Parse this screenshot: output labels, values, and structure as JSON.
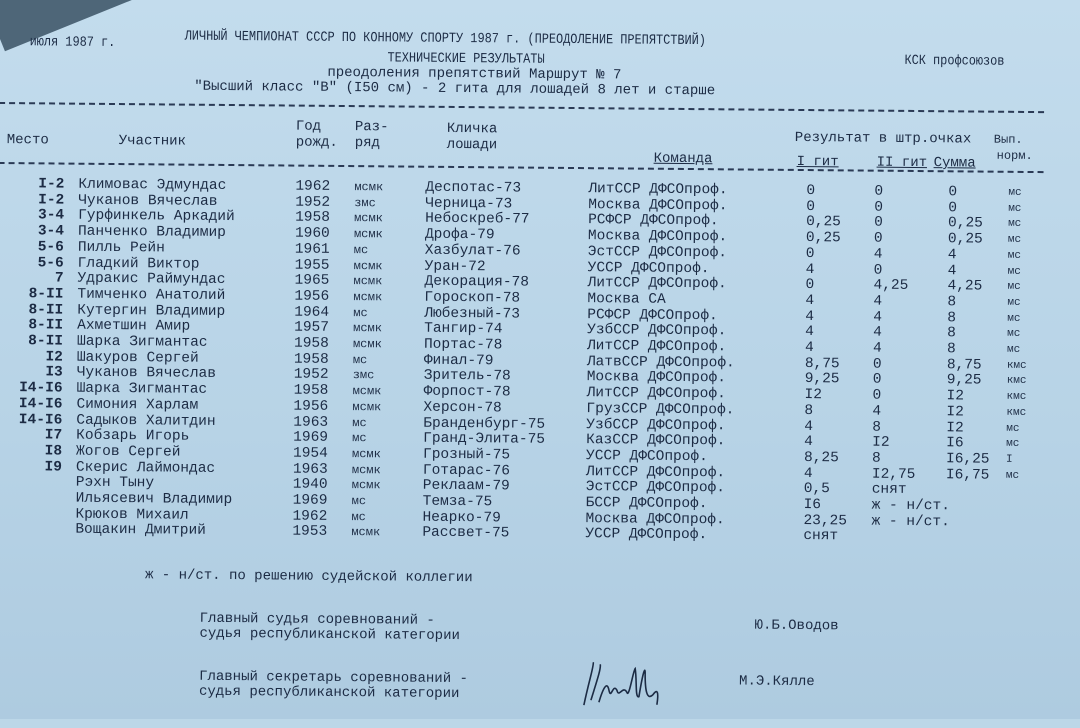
{
  "header": {
    "date": "июля 1987 г.",
    "championship": "ЛИЧНЫЙ ЧЕМПИОНАТ СССР ПО КОННОМУ СПОРТУ 1987 г. (ПРЕОДОЛЕНИЕ ПРЕПЯТСТВИЙ)",
    "venue": "КСК профсоюзов",
    "title": "ТЕХНИЧЕСКИЕ РЕЗУЛЬТАТЫ",
    "subtitle": "преодоления препятствий Маршрут № 7",
    "class": "\"Высший класс \"В\" (I50 см) - 2 гита для лошадей 8 лет и старше"
  },
  "columns": {
    "place": "Место",
    "participant": "Участник",
    "year_1": "Год",
    "year_2": "рожд.",
    "rank_1": "Раз-",
    "rank_2": "ряд",
    "horse_1": "Кличка",
    "horse_2": "лошади",
    "team": "Команда",
    "result": "Результат в штр.очках",
    "round1": "I гит",
    "round2": "II гит",
    "sum": "Сумма",
    "norm_1": "Вып.",
    "norm_2": "норм."
  },
  "rows": [
    {
      "place": "I-2",
      "name": "Климовас Эдмундас",
      "year": "1962",
      "rank": "мсмк",
      "horse": "Деспотас-73",
      "team": "ЛитССР ДФСОпроф.",
      "g1": "0",
      "g2": "0",
      "sum": "0",
      "norm": "мс"
    },
    {
      "place": "I-2",
      "name": "Чуканов Вячеслав",
      "year": "1952",
      "rank": "змс",
      "horse": "Черница-73",
      "team": "Москва ДФСОпроф.",
      "g1": "0",
      "g2": "0",
      "sum": "0",
      "norm": "мс"
    },
    {
      "place": "3-4",
      "name": "Гурфинкель Аркадий",
      "year": "1958",
      "rank": "мсмк",
      "horse": "Небоскреб-77",
      "team": "РСФСР ДФСОпроф.",
      "g1": "0,25",
      "g2": "0",
      "sum": "0,25",
      "norm": "мс"
    },
    {
      "place": "3-4",
      "name": "Панченко Владимир",
      "year": "1960",
      "rank": "мсмк",
      "horse": "Дрофа-79",
      "team": "Москва ДФСОпроф.",
      "g1": "0,25",
      "g2": "0",
      "sum": "0,25",
      "norm": "мс"
    },
    {
      "place": "5-6",
      "name": "Пилль Рейн",
      "year": "1961",
      "rank": "мс",
      "horse": "Хазбулат-76",
      "team": "ЭстССР ДФСОпроф.",
      "g1": "0",
      "g2": "4",
      "sum": "4",
      "norm": "мс"
    },
    {
      "place": "5-6",
      "name": "Гладкий Виктор",
      "year": "1955",
      "rank": "мсмк",
      "horse": "Уран-72",
      "team": "УССР ДФСОпроф.",
      "g1": "4",
      "g2": "0",
      "sum": "4",
      "norm": "мс"
    },
    {
      "place": "7",
      "name": "Удракис Раймундас",
      "year": "1965",
      "rank": "мсмк",
      "horse": "Декорация-78",
      "team": "ЛитССР ДФСОпроф.",
      "g1": "0",
      "g2": "4,25",
      "sum": "4,25",
      "norm": "мс"
    },
    {
      "place": "8-II",
      "name": "Тимченко Анатолий",
      "year": "1956",
      "rank": "мсмк",
      "horse": "Гороскоп-78",
      "team": "Москва СА",
      "g1": "4",
      "g2": "4",
      "sum": "8",
      "norm": "мс"
    },
    {
      "place": "8-II",
      "name": "Кутергин Владимир",
      "year": "1964",
      "rank": "мс",
      "horse": "Любезный-73",
      "team": "РСФСР ДФСОпроф.",
      "g1": "4",
      "g2": "4",
      "sum": "8",
      "norm": "мс"
    },
    {
      "place": "8-II",
      "name": "Ахметшин Амир",
      "year": "1957",
      "rank": "мсмк",
      "horse": "Тангир-74",
      "team": "УзбССР ДФСОпроф.",
      "g1": "4",
      "g2": "4",
      "sum": "8",
      "norm": "мс"
    },
    {
      "place": "8-II",
      "name": "Шарка Зигмантас",
      "year": "1958",
      "rank": "мсмк",
      "horse": "Портас-78",
      "team": "ЛитССР ДФСОпроф.",
      "g1": "4",
      "g2": "4",
      "sum": "8",
      "norm": "мс"
    },
    {
      "place": "I2",
      "name": "Шакуров Сергей",
      "year": "1958",
      "rank": "мс",
      "horse": "Финал-79",
      "team": "ЛатвССР ДФСОпроф.",
      "g1": "8,75",
      "g2": "0",
      "sum": "8,75",
      "norm": "кмс"
    },
    {
      "place": "I3",
      "name": "Чуканов Вячеслав",
      "year": "1952",
      "rank": "змс",
      "horse": "Зритель-78",
      "team": "Москва ДФСОпроф.",
      "g1": "9,25",
      "g2": "0",
      "sum": "9,25",
      "norm": "кмс"
    },
    {
      "place": "I4-I6",
      "name": "Шарка Зигмантас",
      "year": "1958",
      "rank": "мсмк",
      "horse": "Форпост-78",
      "team": "ЛитССР ДФСОпроф.",
      "g1": "I2",
      "g2": "0",
      "sum": "I2",
      "norm": "кмс"
    },
    {
      "place": "I4-I6",
      "name": "Симония Харлам",
      "year": "1956",
      "rank": "мсмк",
      "horse": "Херсон-78",
      "team": "ГрузССР ДФСОпроф.",
      "g1": "8",
      "g2": "4",
      "sum": "I2",
      "norm": "кмс"
    },
    {
      "place": "I4-I6",
      "name": "Садыков Халитдин",
      "year": "1963",
      "rank": "мс",
      "horse": "Бранденбург-75",
      "team": "УзбССР ДФСОпроф.",
      "g1": "4",
      "g2": "8",
      "sum": "I2",
      "norm": "мс"
    },
    {
      "place": "I7",
      "name": "Кобзарь Игорь",
      "year": "1969",
      "rank": "мс",
      "horse": "Гранд-Элита-75",
      "team": "КазССР ДФСОпроф.",
      "g1": "4",
      "g2": "I2",
      "sum": "I6",
      "norm": "мс"
    },
    {
      "place": "I8",
      "name": "Жогов Сергей",
      "year": "1954",
      "rank": "мсмк",
      "horse": "Грозный-75",
      "team": "УССР ДФСОпроф.",
      "g1": "8,25",
      "g2": "8",
      "sum": "I6,25",
      "norm": "I"
    },
    {
      "place": "I9",
      "name": "Скерис Лаймондас",
      "year": "1963",
      "rank": "мсмк",
      "horse": "Готарас-76",
      "team": "ЛитССР ДФСОпроф.",
      "g1": "4",
      "g2": "I2,75",
      "sum": "I6,75",
      "norm": "мс"
    },
    {
      "place": "",
      "name": "Рэхн Тыну",
      "year": "1940",
      "rank": "мсмк",
      "horse": "Реклаам-79",
      "team": "ЭстССР ДФСОпроф.",
      "g1": "0,5",
      "g2": "снят",
      "sum": "",
      "norm": ""
    },
    {
      "place": "",
      "name": "Ильясевич Владимир",
      "year": "1969",
      "rank": "мс",
      "horse": "Темза-75",
      "team": "БССР ДФСОпроф.",
      "g1": "I6",
      "g2": "ж - н/ст.",
      "sum": "",
      "norm": ""
    },
    {
      "place": "",
      "name": "Крюков Михаил",
      "year": "1962",
      "rank": "мс",
      "horse": "Неарко-79",
      "team": "Москва ДФСОпроф.",
      "g1": "23,25",
      "g2": "ж - н/ст.",
      "sum": "",
      "norm": ""
    },
    {
      "place": "",
      "name": "Вощакин Дмитрий",
      "year": "1953",
      "rank": "мсмк",
      "horse": "Рассвет-75",
      "team": "УССР ДФСОпроф.",
      "g1": "снят",
      "g2": "",
      "sum": "",
      "norm": ""
    }
  ],
  "footnote": "ж - н/ст. по решению судейской коллегии",
  "signatures": {
    "judge_1": "Главный судья соревнований -",
    "judge_2": "судья республиканской категории",
    "judge_name": "Ю.Б.Оводов",
    "secretary_1": "Главный секретарь соревнований -",
    "secretary_2": "судья республиканской категории",
    "secretary_name": "М.Э.Кялле"
  }
}
